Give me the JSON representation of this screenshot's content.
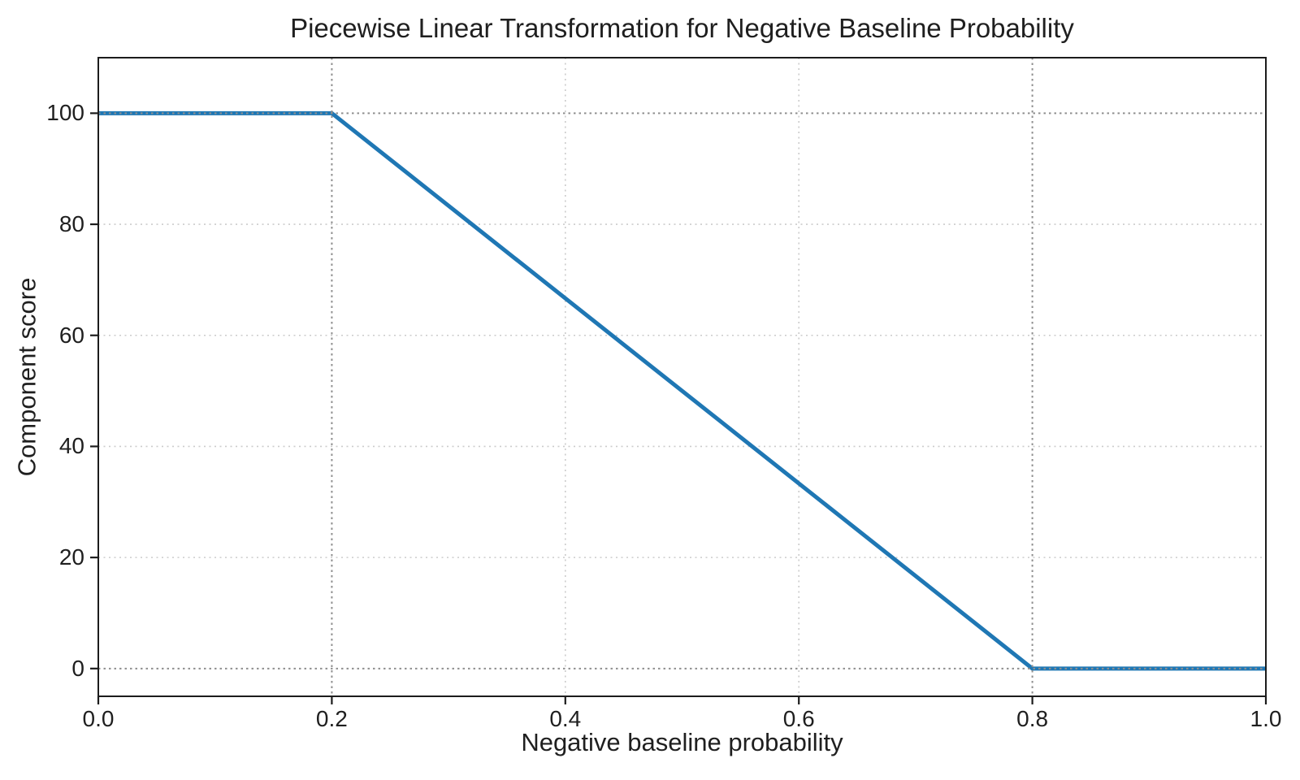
{
  "page": {
    "background_color": "#ffffff",
    "text_color": "#1f1f1f"
  },
  "chart_data": {
    "type": "line",
    "title": "Piecewise Linear Transformation for Negative Baseline Probability",
    "xlabel": "Negative baseline probability",
    "ylabel": "Component score",
    "xlim": [
      0.0,
      1.0
    ],
    "ylim": [
      -5,
      110
    ],
    "xtick_values": [
      0.0,
      0.2,
      0.4,
      0.6,
      0.8,
      1.0
    ],
    "xtick_labels": [
      "0.0",
      "0.2",
      "0.4",
      "0.6",
      "0.8",
      "1.0"
    ],
    "ytick_values": [
      0,
      20,
      40,
      60,
      80,
      100
    ],
    "ytick_labels": [
      "0",
      "20",
      "40",
      "60",
      "80",
      "100"
    ],
    "grid": {
      "style": "dotted",
      "color": "#cbcbcb",
      "x_values": [
        0.4,
        0.6
      ],
      "y_values": [
        20,
        40,
        60,
        80
      ]
    },
    "reference_lines": {
      "style": "dotted",
      "color": "#8f8f8f",
      "x_values": [
        0.2,
        0.8
      ],
      "y_values": [
        0,
        100
      ]
    },
    "series": [
      {
        "name": "component-score",
        "color": "#1f77b4",
        "linewidth": 5,
        "points": [
          [
            0.0,
            100
          ],
          [
            0.2,
            100
          ],
          [
            0.8,
            0
          ],
          [
            1.0,
            0
          ]
        ]
      }
    ],
    "frame_color": "#1c1c1c",
    "legend": false,
    "grid_on": true
  }
}
